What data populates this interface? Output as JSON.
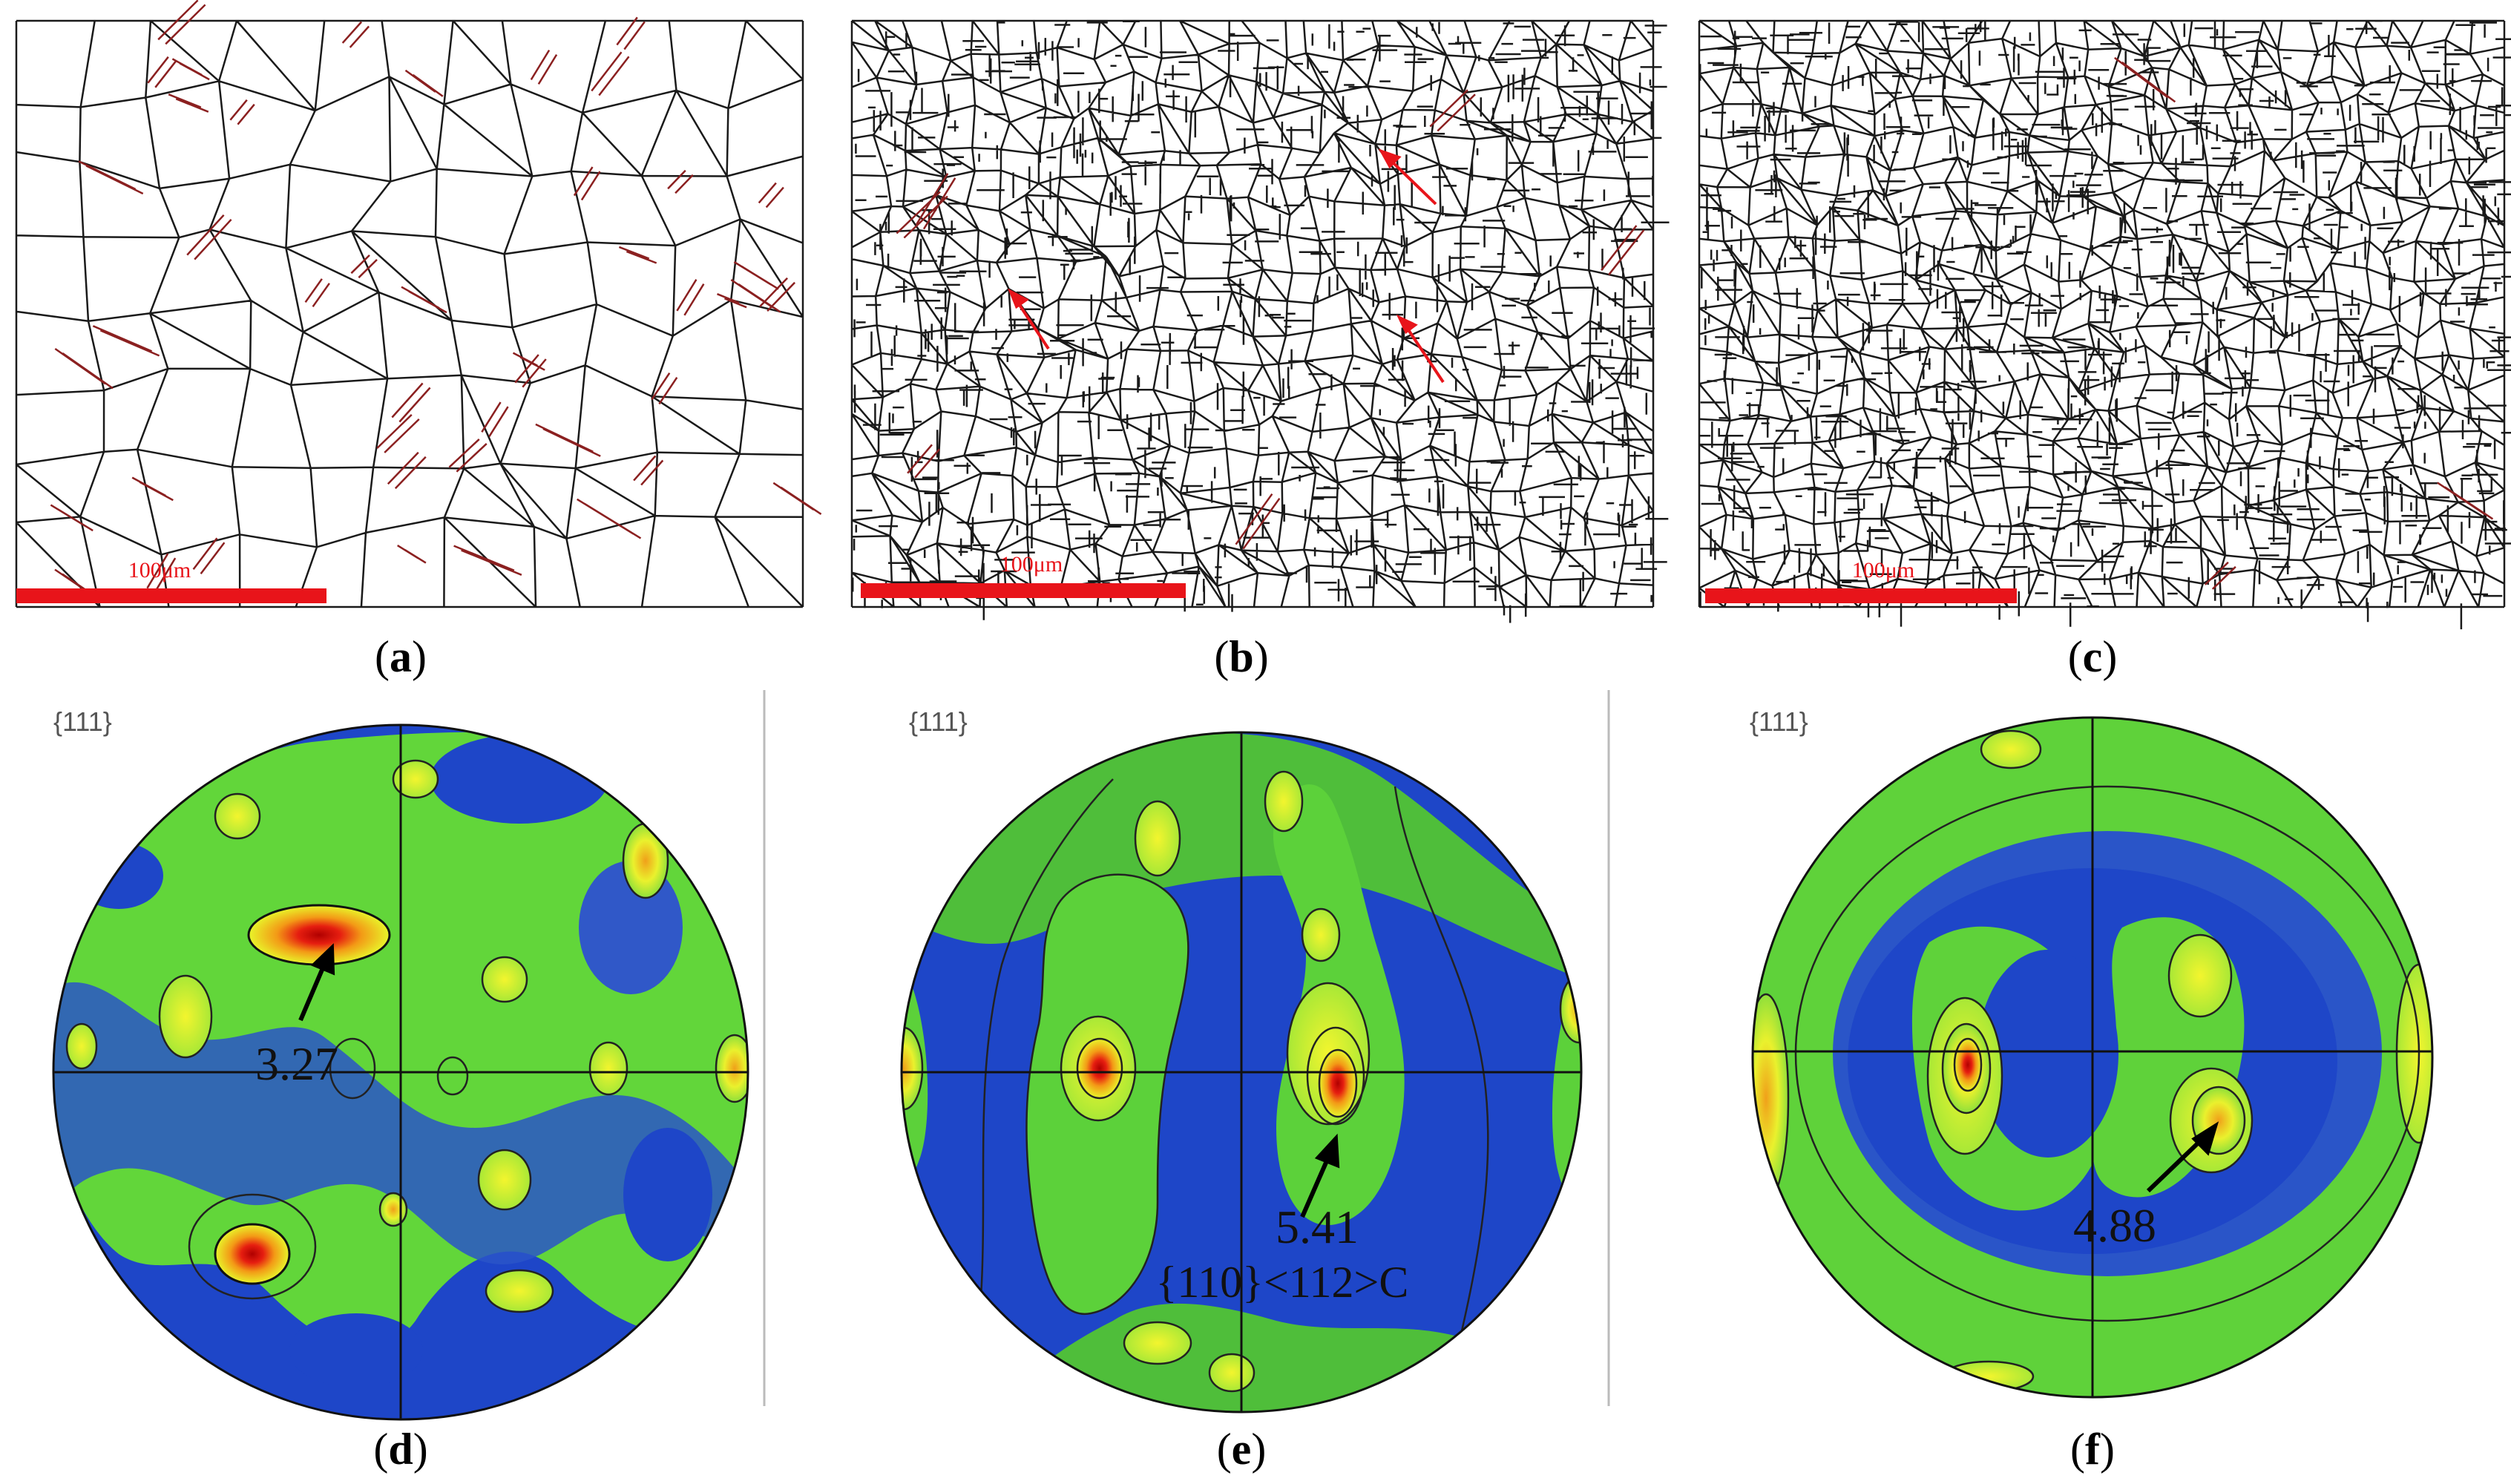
{
  "figure": {
    "panels": [
      {
        "id": "a",
        "label_open": "(",
        "letter": "a",
        "label_close": ")",
        "kind": "grain-boundary-map",
        "scale_bar": "100μm",
        "boundary_color": "#1a1a1a",
        "twin_color": "#8b2020"
      },
      {
        "id": "b",
        "label_open": "(",
        "letter": "b",
        "label_close": ")",
        "kind": "grain-boundary-map",
        "scale_bar": "100μm",
        "boundary_color": "#1a1a1a",
        "twin_color": "#8b2020"
      },
      {
        "id": "c",
        "label_open": "(",
        "letter": "c",
        "label_close": ")",
        "kind": "grain-boundary-map",
        "scale_bar": "100μm",
        "boundary_color": "#1a1a1a",
        "twin_color": "#8b2020"
      },
      {
        "id": "d",
        "label_open": "(",
        "letter": "d",
        "label_close": ")",
        "kind": "pole-figure",
        "pole": "{111}",
        "max_value": "3.27"
      },
      {
        "id": "e",
        "label_open": "(",
        "letter": "e",
        "label_close": ")",
        "kind": "pole-figure",
        "pole": "{111}",
        "max_value": "5.41",
        "texture_label": "{110}<112>C"
      },
      {
        "id": "f",
        "label_open": "(",
        "letter": "f",
        "label_close": ")",
        "kind": "pole-figure",
        "pole": "{111}",
        "max_value": "4.88"
      }
    ],
    "colors": {
      "scale_bar": "#e8141a",
      "pf_low": "#1538c8",
      "pf_mid": "#5bd53b",
      "pf_mid2": "#c9ee2c",
      "pf_high": "#ef8a15",
      "pf_peak": "#d4120e"
    }
  }
}
